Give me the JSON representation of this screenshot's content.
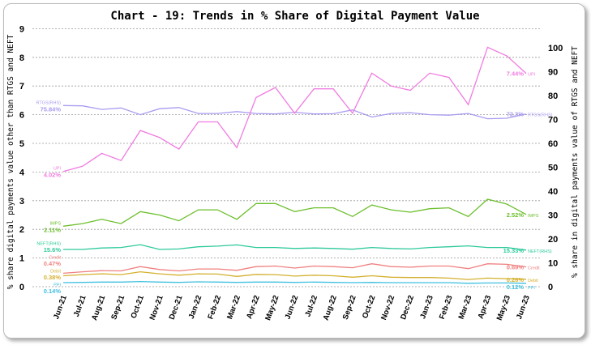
{
  "chart_data": {
    "type": "line",
    "title": "Chart - 19: Trends in % Share of Digital Payment Value",
    "ylabel": "% share digital payments value other than RTGS and NEFT",
    "y2label": "% share in digital payments value of RTGS and NEFT",
    "ylim": [
      0,
      9
    ],
    "y2lim": [
      0,
      105
    ],
    "yticks": [
      0,
      1,
      2,
      3,
      4,
      5,
      6,
      7,
      8,
      9
    ],
    "y2ticks": [
      0,
      10,
      20,
      30,
      40,
      50,
      60,
      70,
      80,
      90,
      100
    ],
    "grid": true,
    "categories": [
      "Jun-21",
      "Jul-21",
      "Aug-21",
      "Sep-21",
      "Oct-21",
      "Nov-21",
      "Dec-21",
      "Jan-22",
      "Feb-22",
      "Mar-22",
      "Apr-22",
      "May-22",
      "Jun-22",
      "Jul-22",
      "Aug-22",
      "Sep-22",
      "Oct-22",
      "Nov-22",
      "Dec-22",
      "Jan-23",
      "Feb-23",
      "Mar-23",
      "Apr-23",
      "May-23",
      "Jun-23"
    ],
    "series": [
      {
        "name": "RTGS(RHS)",
        "axis": "right",
        "color": "#a99cf0",
        "start_label": "75.84%",
        "end_label": "72.3%",
        "values": [
          75.84,
          75.7,
          74.2,
          74.8,
          72.0,
          74.5,
          75.0,
          72.5,
          72.5,
          73.3,
          72.5,
          72.3,
          73.0,
          72.3,
          72.4,
          74.0,
          71.0,
          72.5,
          72.8,
          72.0,
          71.8,
          72.5,
          70.3,
          70.5,
          72.3
        ]
      },
      {
        "name": "UPI",
        "axis": "left",
        "color": "#f07ce0",
        "start_label": "4.02%",
        "end_label": "7.44%",
        "values": [
          4.02,
          4.2,
          4.65,
          4.4,
          5.45,
          5.2,
          4.8,
          5.75,
          5.75,
          4.85,
          6.6,
          6.95,
          6.05,
          6.9,
          6.9,
          6.05,
          7.45,
          7.0,
          6.85,
          7.45,
          7.3,
          6.35,
          8.35,
          8.05,
          7.44
        ]
      },
      {
        "name": "IMPS",
        "axis": "left",
        "color": "#6cbf2c",
        "start_label": "2.11%",
        "end_label": "2.52%",
        "values": [
          2.11,
          2.2,
          2.35,
          2.2,
          2.62,
          2.5,
          2.3,
          2.68,
          2.68,
          2.35,
          2.9,
          2.9,
          2.62,
          2.75,
          2.75,
          2.45,
          2.85,
          2.68,
          2.6,
          2.72,
          2.75,
          2.45,
          3.05,
          2.88,
          2.52
        ]
      },
      {
        "name": "NEFT(RHS)",
        "axis": "right",
        "color": "#2dc99a",
        "start_label": "15.6%",
        "end_label": "15.33%",
        "values": [
          15.6,
          15.6,
          16.2,
          16.4,
          17.6,
          15.6,
          15.8,
          16.7,
          17.0,
          17.5,
          16.4,
          16.4,
          16.0,
          16.2,
          16.0,
          15.7,
          16.4,
          16.0,
          15.8,
          16.4,
          16.7,
          17.1,
          16.4,
          16.4,
          15.33
        ]
      },
      {
        "name": "Credit",
        "axis": "left",
        "color": "#f08080",
        "start_label": "0.47%",
        "end_label": "0.69%",
        "values": [
          0.47,
          0.52,
          0.56,
          0.55,
          0.7,
          0.6,
          0.55,
          0.62,
          0.62,
          0.57,
          0.7,
          0.72,
          0.65,
          0.72,
          0.7,
          0.66,
          0.8,
          0.7,
          0.68,
          0.72,
          0.72,
          0.63,
          0.8,
          0.78,
          0.69
        ]
      },
      {
        "name": "Debit",
        "axis": "left",
        "color": "#d4b030",
        "start_label": "0.38%",
        "end_label": "0.26%",
        "values": [
          0.38,
          0.42,
          0.45,
          0.42,
          0.52,
          0.45,
          0.4,
          0.45,
          0.44,
          0.36,
          0.43,
          0.42,
          0.37,
          0.4,
          0.38,
          0.33,
          0.38,
          0.33,
          0.32,
          0.32,
          0.3,
          0.25,
          0.3,
          0.28,
          0.26
        ]
      },
      {
        "name": "PPI",
        "axis": "left",
        "color": "#40c0e0",
        "start_label": "0.14%",
        "end_label": "0.12%",
        "values": [
          0.14,
          0.15,
          0.16,
          0.16,
          0.18,
          0.16,
          0.15,
          0.17,
          0.16,
          0.15,
          0.16,
          0.16,
          0.15,
          0.16,
          0.15,
          0.14,
          0.15,
          0.14,
          0.14,
          0.14,
          0.14,
          0.12,
          0.13,
          0.13,
          0.12
        ]
      }
    ]
  }
}
